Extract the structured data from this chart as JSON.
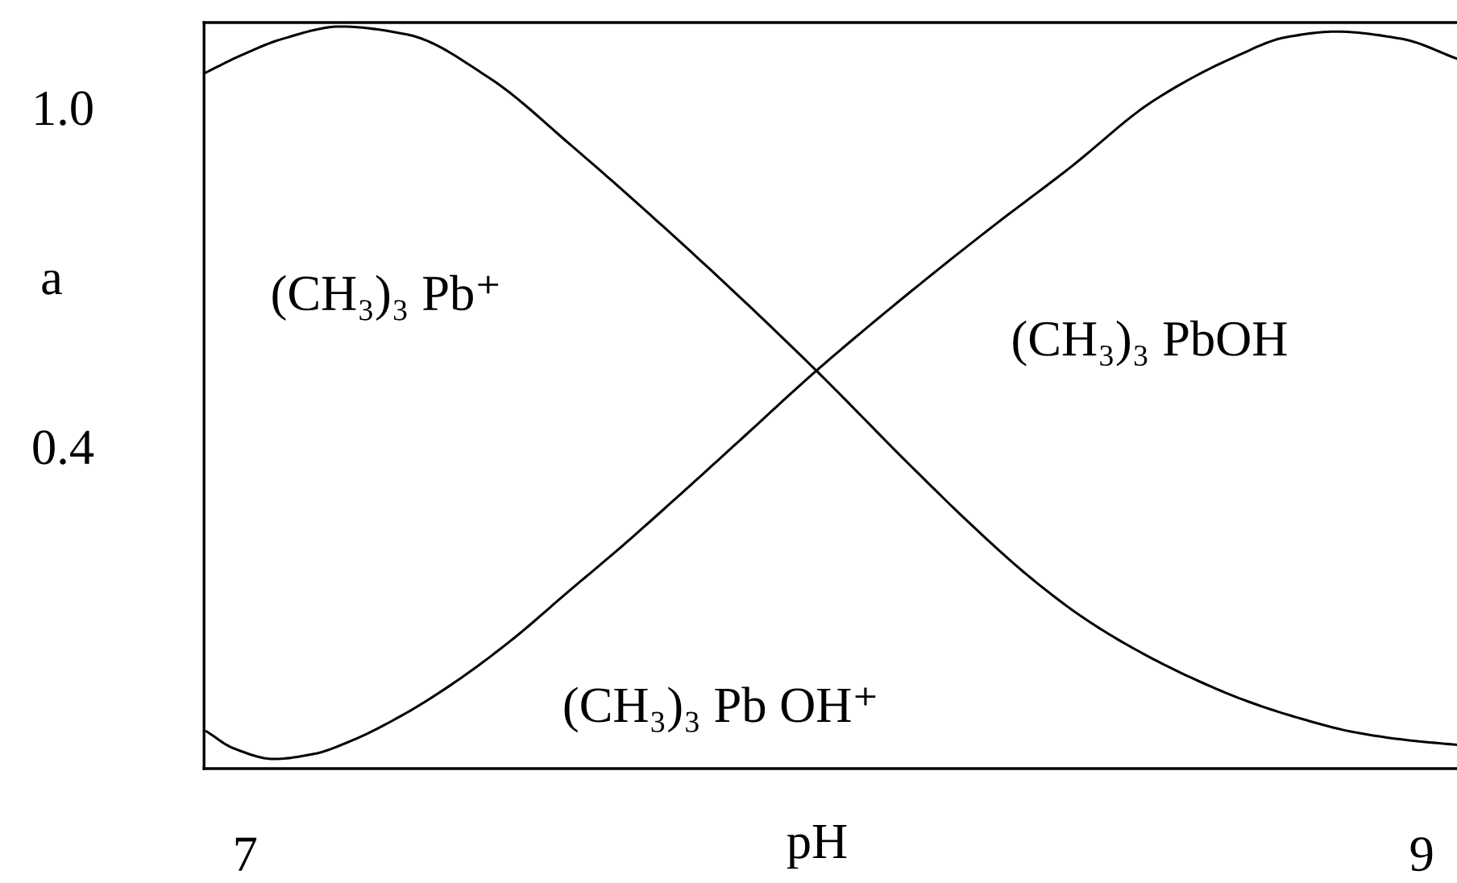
{
  "chart_data": {
    "type": "line",
    "xlabel": "pH",
    "ylabel": "a",
    "series": [
      {
        "name": "(CH₃)₃ Pb⁺",
        "color": "#000000",
        "x": [
          6.93,
          6.993,
          7.063,
          7.162,
          7.275,
          7.415,
          7.556,
          7.699,
          7.839,
          7.971,
          8.131,
          8.245,
          8.337,
          8.429,
          8.52,
          8.612,
          8.704,
          8.796,
          8.887,
          8.979,
          9.06
        ],
        "values": [
          1.06,
          1.092,
          1.121,
          1.143,
          1.129,
          1.052,
          0.931,
          0.8,
          0.666,
          0.534,
          0.366,
          0.251,
          0.166,
          0.094,
          0.037,
          -0.011,
          -0.051,
          -0.082,
          -0.106,
          -0.12,
          -0.128
        ]
      },
      {
        "name": "(CH₃)₃ PbOH",
        "color": "#000000",
        "x": [
          6.934,
          6.98,
          7.049,
          7.117,
          7.182,
          7.273,
          7.365,
          7.457,
          7.548,
          7.64,
          7.732,
          7.839,
          7.971,
          8.122,
          8.263,
          8.403,
          8.543,
          8.686,
          8.769,
          8.854,
          8.967,
          9.06
        ],
        "values": [
          -0.104,
          -0.134,
          -0.153,
          -0.144,
          -0.12,
          -0.072,
          -0.011,
          0.061,
          0.142,
          0.223,
          0.308,
          0.409,
          0.534,
          0.666,
          0.783,
          0.894,
          1.011,
          1.091,
          1.124,
          1.134,
          1.121,
          1.086
        ]
      }
    ],
    "annotations": [
      "(CH₃)₃ Pb OH⁺"
    ],
    "xlim": [
      6.93,
      9.06
    ],
    "ylim": [
      -0.17,
      1.15
    ],
    "xticks": [
      7,
      9
    ],
    "yticks": [
      0.4,
      {
        "value": 1,
        "label": "1.0"
      }
    ],
    "marker": "none",
    "line_style": "solid"
  }
}
